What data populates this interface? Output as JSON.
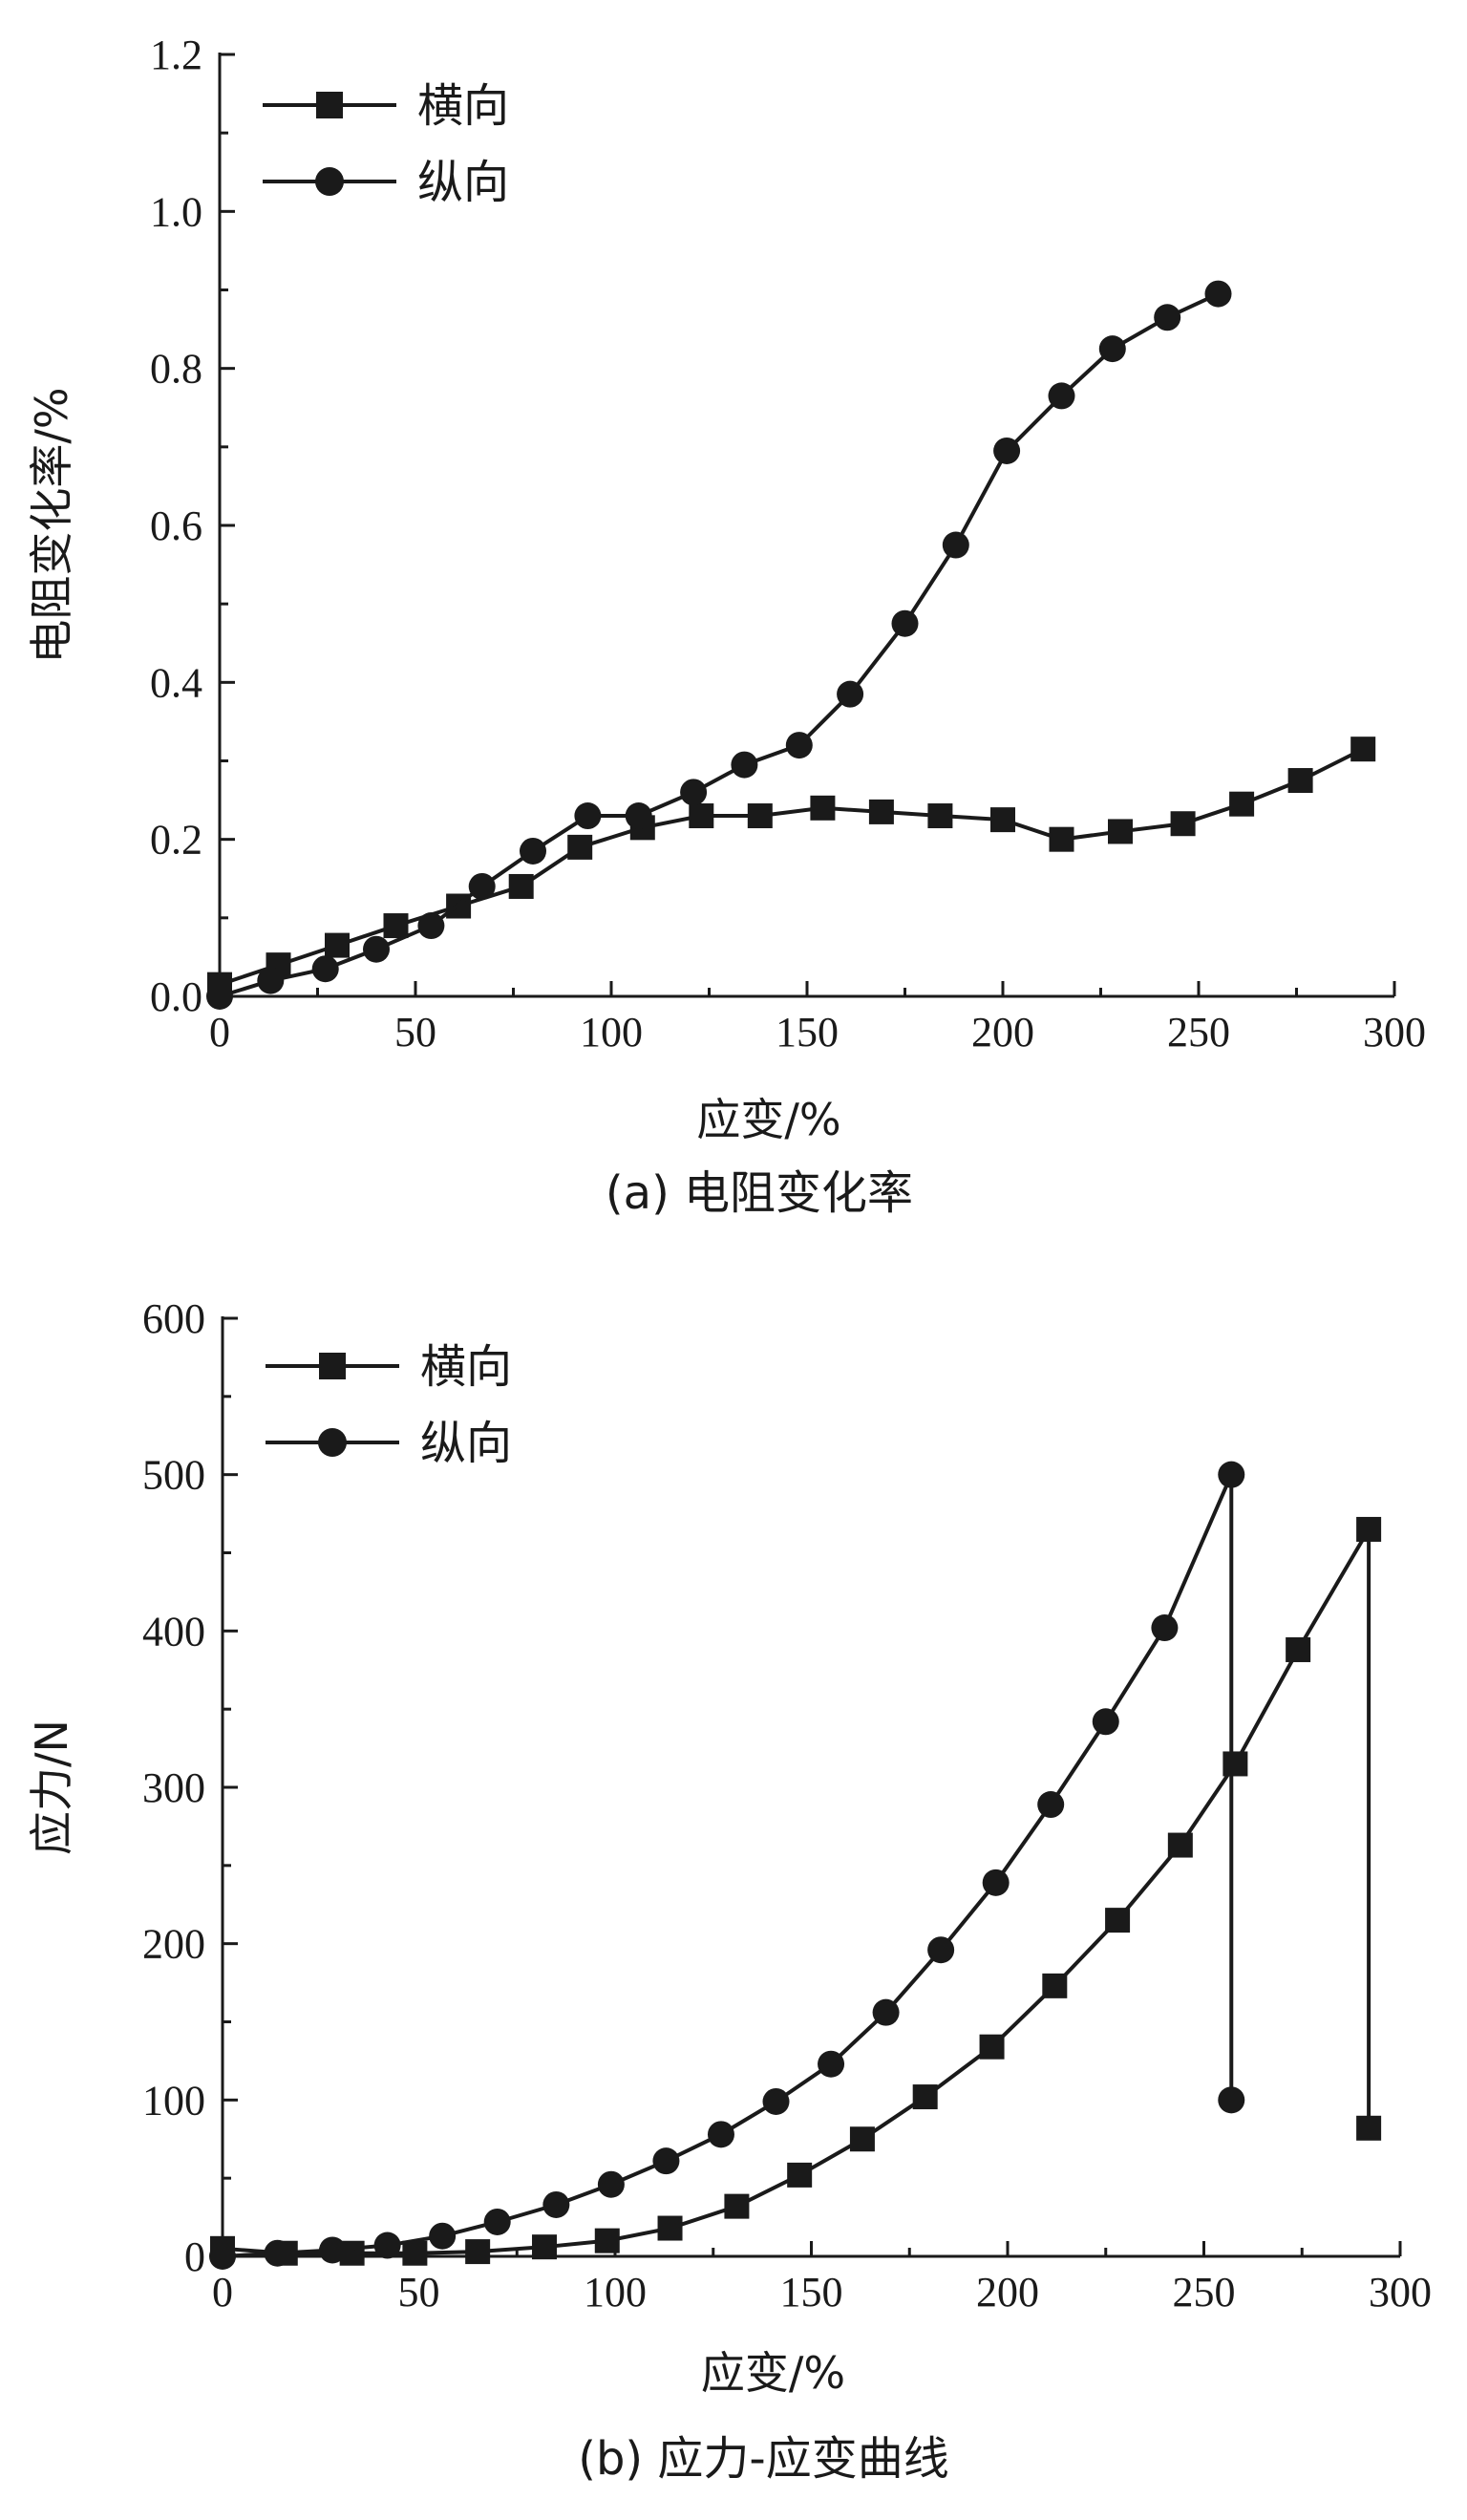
{
  "chart_data": [
    {
      "type": "line",
      "title": "",
      "caption": "(a) 电阻变化率",
      "xlabel": "应变/%",
      "ylabel": "电阻变化率/%",
      "xlim": [
        0,
        300
      ],
      "ylim": [
        0,
        1.2
      ],
      "xticks": [
        0,
        50,
        100,
        150,
        200,
        250,
        300
      ],
      "xtick_labels": [
        "0",
        "50",
        "100",
        "150",
        "200",
        "250",
        "300"
      ],
      "yticks": [
        0,
        0.2,
        0.4,
        0.6,
        0.8,
        1.0,
        1.2
      ],
      "ytick_labels": [
        "0.0",
        "0.2",
        "0.4",
        "0.6",
        "0.8",
        "1.0",
        "1.2"
      ],
      "legend_position": "top-left",
      "series": [
        {
          "name": "横向",
          "marker": "square",
          "x": [
            0,
            15,
            30,
            45,
            61,
            77,
            92,
            108,
            123,
            138,
            154,
            169,
            184,
            200,
            215,
            230,
            246,
            261,
            276,
            292
          ],
          "y": [
            0.015,
            0.04,
            0.065,
            0.09,
            0.115,
            0.14,
            0.19,
            0.215,
            0.23,
            0.23,
            0.24,
            0.235,
            0.23,
            0.225,
            0.2,
            0.21,
            0.22,
            0.245,
            0.275,
            0.315
          ]
        },
        {
          "name": "纵向",
          "marker": "circle",
          "x": [
            0,
            13,
            27,
            40,
            54,
            67,
            80,
            94,
            107,
            121,
            134,
            148,
            161,
            175,
            188,
            201,
            215,
            228,
            242,
            255
          ],
          "y": [
            0.0,
            0.02,
            0.035,
            0.06,
            0.09,
            0.14,
            0.185,
            0.23,
            0.23,
            0.26,
            0.295,
            0.32,
            0.385,
            0.475,
            0.575,
            0.695,
            0.765,
            0.825,
            0.865,
            0.895
          ]
        }
      ]
    },
    {
      "type": "line",
      "title": "",
      "caption": "(b) 应力-应变曲线",
      "xlabel": "应变/%",
      "ylabel": "应力/N",
      "xlim": [
        0,
        300
      ],
      "ylim": [
        0,
        600
      ],
      "xticks": [
        0,
        50,
        100,
        150,
        200,
        250,
        300
      ],
      "xtick_labels": [
        "0",
        "50",
        "100",
        "150",
        "200",
        "250",
        "300"
      ],
      "yticks": [
        0,
        100,
        200,
        300,
        400,
        500,
        600
      ],
      "ytick_labels": [
        "0",
        "100",
        "200",
        "300",
        "400",
        "500",
        "600"
      ],
      "legend_position": "top-left",
      "series": [
        {
          "name": "横向",
          "marker": "square",
          "x": [
            0,
            16,
            33,
            49,
            65,
            82,
            98,
            114,
            131,
            147,
            163,
            179,
            196,
            212,
            228,
            244,
            258,
            274,
            292,
            292
          ],
          "y": [
            5,
            2,
            2,
            2,
            3,
            6,
            10,
            18,
            32,
            52,
            75,
            102,
            134,
            173,
            215,
            263,
            315,
            388,
            465,
            82
          ]
        },
        {
          "name": "纵向",
          "marker": "circle",
          "x": [
            0,
            14,
            28,
            42,
            56,
            70,
            85,
            99,
            113,
            127,
            141,
            155,
            169,
            183,
            197,
            211,
            225,
            240,
            257,
            257
          ],
          "y": [
            0,
            2,
            4,
            7,
            13,
            22,
            33,
            46,
            61,
            78,
            99,
            123,
            156,
            196,
            239,
            289,
            342,
            402,
            500,
            100
          ]
        }
      ]
    }
  ]
}
